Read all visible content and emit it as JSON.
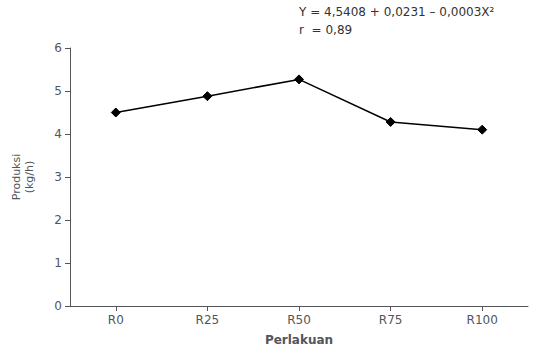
{
  "chart_data": {
    "type": "line",
    "categories": [
      "R0",
      "R25",
      "R50",
      "R75",
      "R100"
    ],
    "values": [
      4.5,
      4.88,
      5.27,
      4.28,
      4.1
    ],
    "color": "black",
    "marker": "diamond",
    "xlabel": "Perlakuan",
    "ylabel": "Produksi\n(kg/h)",
    "ylim": [
      0,
      6
    ],
    "yticks": [
      0,
      1,
      2,
      3,
      4,
      5,
      6
    ],
    "grid": false,
    "annotations": [
      "Y = 4,5408 + 0,0231 – 0,0003X²",
      "r  = 0,89"
    ]
  }
}
